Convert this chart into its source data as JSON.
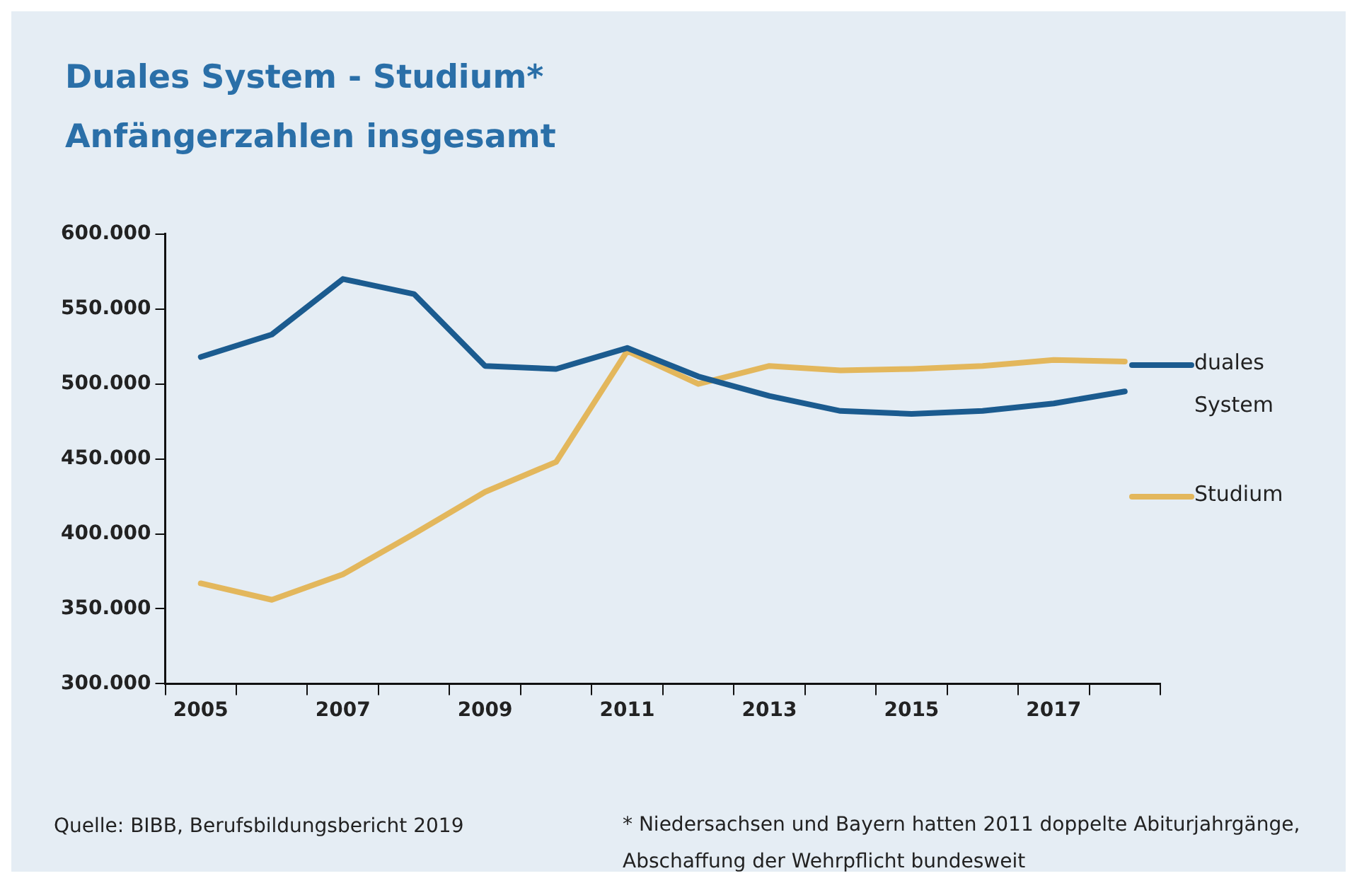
{
  "chart_data": {
    "type": "line",
    "title": "Duales System - Studium*",
    "subtitle": "Anfängerzahlen insgesamt",
    "categories": [
      "2005",
      null,
      "2007",
      null,
      "2009",
      null,
      "2011",
      null,
      "2013",
      null,
      "2015",
      null,
      "2017",
      null
    ],
    "series": [
      {
        "name": "duales System",
        "color": "#1b5b8f",
        "values": [
          518000,
          533000,
          570000,
          560000,
          512000,
          510000,
          524000,
          505000,
          492000,
          482000,
          480000,
          482000,
          487000,
          495000
        ]
      },
      {
        "name": "Studium",
        "color": "#e3b75c",
        "values": [
          367000,
          356000,
          373000,
          400000,
          428000,
          448000,
          522000,
          500000,
          512000,
          509000,
          510000,
          512000,
          516000,
          515000
        ]
      }
    ],
    "ylim": [
      300000,
      600000
    ],
    "yticks": [
      {
        "value": 300000,
        "label": "300.000"
      },
      {
        "value": 350000,
        "label": "350.000"
      },
      {
        "value": 400000,
        "label": "400.000"
      },
      {
        "value": 450000,
        "label": "450.000"
      },
      {
        "value": 500000,
        "label": "500.000"
      },
      {
        "value": 550000,
        "label": "550.000"
      },
      {
        "value": 600000,
        "label": "600.000"
      }
    ],
    "grid": false,
    "legend": "right",
    "marker": "none",
    "line_style": "solid",
    "annotations": [
      "Quelle: BIBB, Berufsbildungsbericht 2019",
      "* Niedersachsen und Bayern hatten 2011 doppelte Abiturjahrgänge, Abschaffung der Wehrpflicht bundesweit"
    ]
  }
}
